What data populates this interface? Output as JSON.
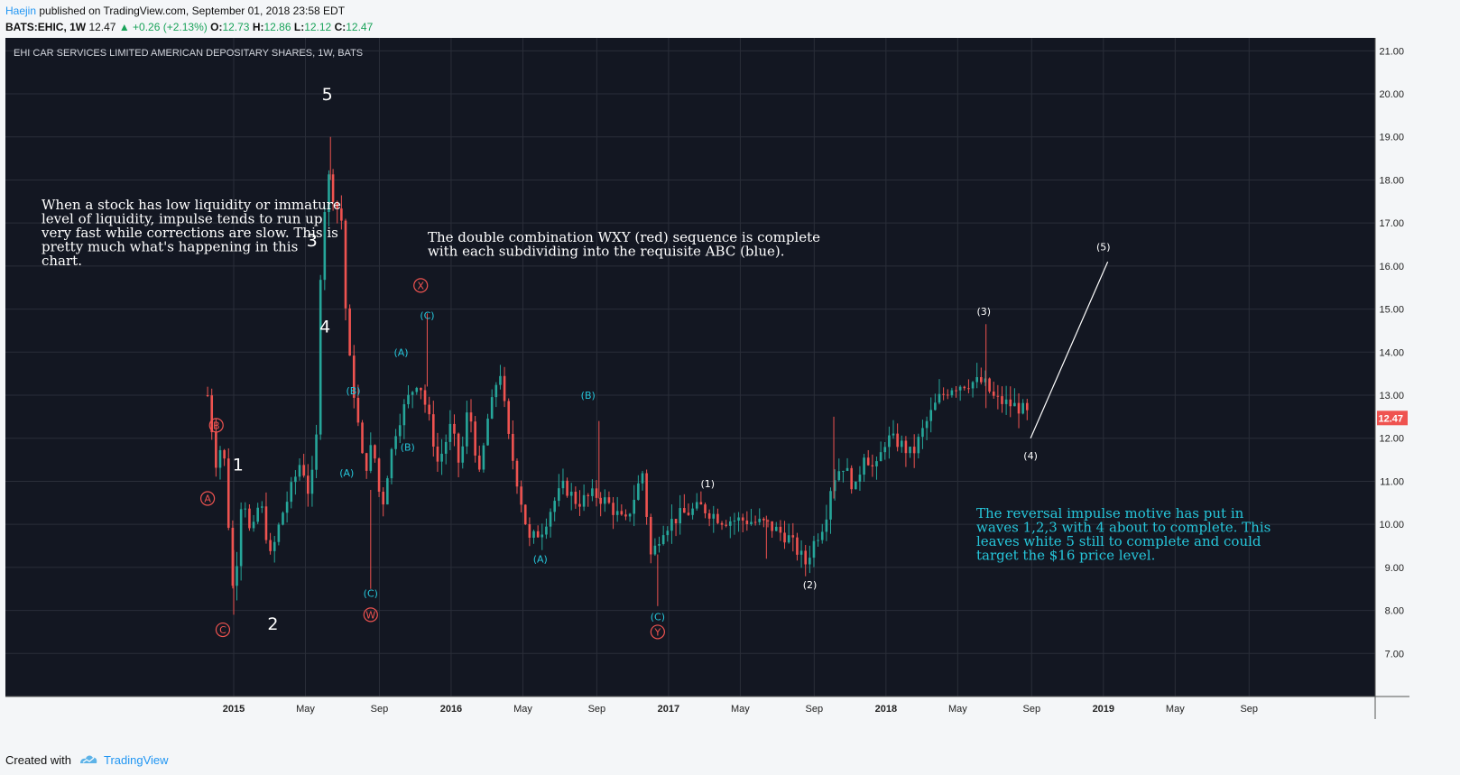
{
  "header": {
    "author": "Haejin",
    "published": "published on TradingView.com, September 01, 2018 23:58 EDT",
    "symbol": "BATS:EHIC, 1W",
    "last": "12.47",
    "change": "▲ +0.26 (+2.13%)",
    "o_label": "O:",
    "o": "12.73",
    "h_label": "H:",
    "h": "12.86",
    "l_label": "L:",
    "l": "12.12",
    "c_label": "C:",
    "c": "12.47"
  },
  "footer": {
    "created_with": "Created with",
    "brand": "TradingView"
  },
  "chart_data": {
    "type": "candlestick",
    "title": "EHI CAR SERVICES LIMITED AMERICAN DEPOSITARY SHARES, 1W, BATS",
    "ylim": [
      6.0,
      21.3
    ],
    "y_ticks": [
      "7.00",
      "8.00",
      "9.00",
      "10.00",
      "11.00",
      "12.00",
      "13.00",
      "14.00",
      "15.00",
      "16.00",
      "17.00",
      "18.00",
      "19.00",
      "20.00",
      "21.00"
    ],
    "x_ticks": [
      {
        "label": "2015",
        "t": 2015.0
      },
      {
        "label": "May",
        "t": 2015.33
      },
      {
        "label": "Sep",
        "t": 2015.67
      },
      {
        "label": "2016",
        "t": 2016.0
      },
      {
        "label": "May",
        "t": 2016.33
      },
      {
        "label": "Sep",
        "t": 2016.67
      },
      {
        "label": "2017",
        "t": 2017.0
      },
      {
        "label": "May",
        "t": 2017.33
      },
      {
        "label": "Sep",
        "t": 2017.67
      },
      {
        "label": "2018",
        "t": 2018.0
      },
      {
        "label": "May",
        "t": 2018.33
      },
      {
        "label": "Sep",
        "t": 2018.67
      },
      {
        "label": "2019",
        "t": 2019.0
      },
      {
        "label": "May",
        "t": 2019.33
      },
      {
        "label": "Sep",
        "t": 2019.67
      }
    ],
    "x_range": [
      2013.95,
      2020.25
    ],
    "last_price_label": "12.47",
    "last_price": 12.47,
    "grid": true,
    "anchors": [
      [
        2014.88,
        13.0
      ],
      [
        2014.92,
        11.4
      ],
      [
        2014.95,
        12.0
      ],
      [
        2015.0,
        8.2
      ],
      [
        2015.04,
        10.9
      ],
      [
        2015.08,
        9.6
      ],
      [
        2015.12,
        10.6
      ],
      [
        2015.17,
        9.2
      ],
      [
        2015.22,
        10.2
      ],
      [
        2015.27,
        10.9
      ],
      [
        2015.31,
        11.5
      ],
      [
        2015.35,
        10.6
      ],
      [
        2015.38,
        12.0
      ],
      [
        2015.4,
        16.0
      ],
      [
        2015.43,
        18.2
      ],
      [
        2015.46,
        17.6
      ],
      [
        2015.5,
        17.0
      ],
      [
        2015.52,
        14.3
      ],
      [
        2015.56,
        12.8
      ],
      [
        2015.6,
        11.2
      ],
      [
        2015.64,
        11.9
      ],
      [
        2015.68,
        10.3
      ],
      [
        2015.71,
        11.3
      ],
      [
        2015.75,
        12.3
      ],
      [
        2015.8,
        12.9
      ],
      [
        2015.85,
        13.4
      ],
      [
        2015.9,
        12.4
      ],
      [
        2015.94,
        11.4
      ],
      [
        2016.0,
        12.3
      ],
      [
        2016.04,
        11.3
      ],
      [
        2016.08,
        12.8
      ],
      [
        2016.13,
        11.1
      ],
      [
        2016.17,
        12.5
      ],
      [
        2016.2,
        13.0
      ],
      [
        2016.22,
        13.8
      ],
      [
        2016.26,
        12.1
      ],
      [
        2016.3,
        11.1
      ],
      [
        2016.36,
        9.6
      ],
      [
        2016.42,
        9.9
      ],
      [
        2016.47,
        10.5
      ],
      [
        2016.52,
        10.9
      ],
      [
        2016.58,
        10.5
      ],
      [
        2016.66,
        10.7
      ],
      [
        2016.72,
        10.5
      ],
      [
        2016.8,
        10.0
      ],
      [
        2016.88,
        11.2
      ],
      [
        2016.92,
        9.2
      ],
      [
        2016.97,
        9.9
      ],
      [
        2017.05,
        10.2
      ],
      [
        2017.15,
        10.4
      ],
      [
        2017.25,
        10.1
      ],
      [
        2017.35,
        10.1
      ],
      [
        2017.45,
        10.0
      ],
      [
        2017.55,
        9.7
      ],
      [
        2017.63,
        9.1
      ],
      [
        2017.67,
        9.6
      ],
      [
        2017.72,
        10.1
      ],
      [
        2017.75,
        11.0
      ],
      [
        2017.8,
        11.4
      ],
      [
        2017.86,
        10.8
      ],
      [
        2017.9,
        11.7
      ],
      [
        2017.95,
        11.2
      ],
      [
        2018.0,
        12.0
      ],
      [
        2018.06,
        11.9
      ],
      [
        2018.12,
        11.6
      ],
      [
        2018.18,
        12.3
      ],
      [
        2018.24,
        12.9
      ],
      [
        2018.3,
        13.2
      ],
      [
        2018.38,
        13.3
      ],
      [
        2018.45,
        13.3
      ],
      [
        2018.5,
        12.9
      ],
      [
        2018.56,
        12.8
      ],
      [
        2018.62,
        12.7
      ],
      [
        2018.665,
        12.47
      ]
    ],
    "waves": [
      {
        "label": "5",
        "t": 2015.43,
        "y": 20.0,
        "kind": "white-big"
      },
      {
        "label": "3",
        "t": 2015.36,
        "y": 16.6,
        "kind": "white-big"
      },
      {
        "label": "4",
        "t": 2015.42,
        "y": 14.6,
        "kind": "white-big"
      },
      {
        "label": "1",
        "t": 2015.02,
        "y": 11.4,
        "kind": "white-big"
      },
      {
        "label": "2",
        "t": 2015.18,
        "y": 7.7,
        "kind": "white-big"
      },
      {
        "label": "A",
        "t": 2014.88,
        "y": 10.6,
        "kind": "red-circle"
      },
      {
        "label": "B",
        "t": 2014.92,
        "y": 12.3,
        "kind": "red-circle"
      },
      {
        "label": "C",
        "t": 2014.95,
        "y": 7.55,
        "kind": "red-circle"
      },
      {
        "label": "W",
        "t": 2015.63,
        "y": 7.9,
        "kind": "red-circle"
      },
      {
        "label": "X",
        "t": 2015.86,
        "y": 15.55,
        "kind": "red-circle"
      },
      {
        "label": "Y",
        "t": 2016.95,
        "y": 7.5,
        "kind": "red-circle"
      },
      {
        "label": "(A)",
        "t": 2015.52,
        "y": 11.2,
        "kind": "cyan"
      },
      {
        "label": "(B)",
        "t": 2015.55,
        "y": 13.1,
        "kind": "cyan"
      },
      {
        "label": "(C)",
        "t": 2015.63,
        "y": 8.4,
        "kind": "cyan"
      },
      {
        "label": "(A)",
        "t": 2015.77,
        "y": 14.0,
        "kind": "cyan"
      },
      {
        "label": "(B)",
        "t": 2015.8,
        "y": 11.8,
        "kind": "cyan"
      },
      {
        "label": "(C)",
        "t": 2015.89,
        "y": 14.85,
        "kind": "cyan"
      },
      {
        "label": "(A)",
        "t": 2016.41,
        "y": 9.2,
        "kind": "cyan"
      },
      {
        "label": "(B)",
        "t": 2016.63,
        "y": 13.0,
        "kind": "cyan"
      },
      {
        "label": "(C)",
        "t": 2016.95,
        "y": 7.85,
        "kind": "cyan"
      },
      {
        "label": "(1)",
        "t": 2017.18,
        "y": 10.95,
        "kind": "white-small"
      },
      {
        "label": "(2)",
        "t": 2017.65,
        "y": 8.6,
        "kind": "white-small"
      },
      {
        "label": "(3)",
        "t": 2018.45,
        "y": 14.95,
        "kind": "white-small"
      },
      {
        "label": "(4)",
        "t": 2018.665,
        "y": 11.6,
        "kind": "white-small"
      },
      {
        "label": "(5)",
        "t": 2019.0,
        "y": 16.45,
        "kind": "white-small"
      }
    ],
    "projection_line": {
      "from": [
        2018.665,
        12.0
      ],
      "to": [
        2019.02,
        16.1
      ]
    },
    "notes": [
      {
        "lines": [
          "When a stock has low liquidity or immature",
          "level of liquidity, impulse tends to run up",
          "very fast while corrections are slow. This is",
          "pretty much what's happening in this",
          "chart."
        ],
        "kind": "white"
      },
      {
        "lines": [
          "The double combination WXY (red) sequence is complete",
          "with each subdividing into the requisite ABC (blue)."
        ],
        "kind": "white"
      },
      {
        "lines": [
          "The reversal impulse motive has put in",
          "waves 1,2,3 with 4 about to complete. This",
          "leaves white 5 still to complete and could",
          "target the $16 price level."
        ],
        "kind": "cyan"
      }
    ],
    "colors": {
      "bg": "#131722",
      "grid": "#2a2e39",
      "up": "#26a69a",
      "down": "#ef5350",
      "red": "#ef5350",
      "cyan": "#26c6da",
      "text": "#ffffff",
      "axis_text": "#222222"
    }
  }
}
